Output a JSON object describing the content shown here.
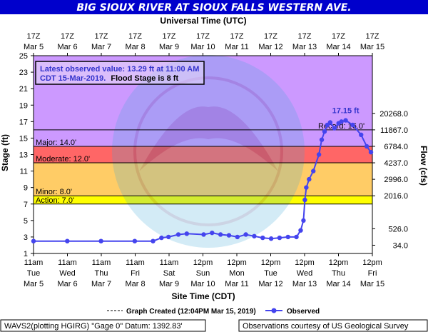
{
  "header": {
    "title": "BIG SIOUX RIVER AT SIOUX FALLS WESTERN AVE.",
    "title_color": "#0000cc"
  },
  "top_axis": {
    "title": "Universal Time (UTC)",
    "ticks": [
      {
        "hour": "17Z",
        "date": "Mar 5"
      },
      {
        "hour": "17Z",
        "date": "Mar 6"
      },
      {
        "hour": "17Z",
        "date": "Mar 7"
      },
      {
        "hour": "17Z",
        "date": "Mar 8"
      },
      {
        "hour": "17Z",
        "date": "Mar 9"
      },
      {
        "hour": "17Z",
        "date": "Mar 10"
      },
      {
        "hour": "17Z",
        "date": "Mar 11"
      },
      {
        "hour": "17Z",
        "date": "Mar 12"
      },
      {
        "hour": "17Z",
        "date": "Mar 13"
      },
      {
        "hour": "17Z",
        "date": "Mar 14"
      },
      {
        "hour": "17Z",
        "date": "Mar 15"
      }
    ]
  },
  "bottom_axis": {
    "title": "Site Time (CDT)",
    "ticks": [
      {
        "time": "11am",
        "day": "Tue",
        "date": "Mar 5"
      },
      {
        "time": "11am",
        "day": "Wed",
        "date": "Mar 6"
      },
      {
        "time": "11am",
        "day": "Thu",
        "date": "Mar 7"
      },
      {
        "time": "11am",
        "day": "Fri",
        "date": "Mar 8"
      },
      {
        "time": "11am",
        "day": "Sat",
        "date": "Mar 9"
      },
      {
        "time": "12pm",
        "day": "Sun",
        "date": "Mar 10"
      },
      {
        "time": "12pm",
        "day": "Mon",
        "date": "Mar 11"
      },
      {
        "time": "12pm",
        "day": "Tue",
        "date": "Mar 12"
      },
      {
        "time": "12pm",
        "day": "Wed",
        "date": "Mar 13"
      },
      {
        "time": "12pm",
        "day": "Thu",
        "date": "Mar 14"
      },
      {
        "time": "12pm",
        "day": "Fri",
        "date": "Mar 15"
      }
    ]
  },
  "left_axis": {
    "title": "Stage (ft)",
    "ticks": [
      "1",
      "3",
      "5",
      "7",
      "9",
      "11",
      "13",
      "15",
      "17",
      "19",
      "21",
      "23",
      "25"
    ]
  },
  "right_axis": {
    "title": "Flow (cfs)",
    "ticks": [
      {
        "stage": 2,
        "label": "34.0"
      },
      {
        "stage": 4,
        "label": "526.0"
      },
      {
        "stage": 8,
        "label": "2016.0"
      },
      {
        "stage": 10,
        "label": "2996.0"
      },
      {
        "stage": 12,
        "label": "4237.0"
      },
      {
        "stage": 14,
        "label": "6784.0"
      },
      {
        "stage": 16,
        "label": "11867.0"
      },
      {
        "stage": 18,
        "label": "20268.0"
      }
    ]
  },
  "info_box": {
    "line1": "Latest observed value: 13.29 ft at 11:00 AM",
    "line2_blue": "CDT 15-Mar-2019.",
    "line2_black": "Flood Stage is 8 ft"
  },
  "peak_label": "17.15 ft",
  "footer": {
    "left": "WAVS2(plotting HGIRG) \"Gage 0\" Datum: 1392.83'",
    "right": "Observations courtesy of US Geological Survey"
  },
  "chart_data": {
    "type": "line",
    "title": "BIG SIOUX RIVER AT SIOUX FALLS WESTERN AVE.",
    "xlabel": "Site Time (CDT)",
    "ylabel": "Stage (ft)",
    "y2label": "Flow (cfs)",
    "ylim": [
      1,
      25
    ],
    "xlim": [
      "2019-03-05 11:00 CDT",
      "2019-03-15 12:00 CDT"
    ],
    "grid": false,
    "legend": [
      {
        "name": "Graph Created (12:04PM Mar 15, 2019)",
        "style": "dashed-line",
        "color": "#000000"
      },
      {
        "name": "Observed",
        "style": "line-dot",
        "color": "#4444ee"
      }
    ],
    "categories": [
      {
        "name": "Record",
        "stage": 16.0,
        "label": "Record: 16.0'",
        "color": "#cc99ff"
      },
      {
        "name": "Major",
        "stage": 14.0,
        "label": "Major: 14.0'",
        "color": "#ff6666"
      },
      {
        "name": "Moderate",
        "stage": 12.0,
        "label": "Moderate: 12.0'",
        "color": "#ffcc66"
      },
      {
        "name": "Minor",
        "stage": 8.0,
        "label": "Minor: 8.0'",
        "color": "#ffff00"
      },
      {
        "name": "Action",
        "stage": 7.0,
        "label": "Action: 7.0'",
        "color": "#ffffff"
      }
    ],
    "band_colors": {
      "above_record": "#cc99ff",
      "major": "#ff6666",
      "moderate": "#ffcc66",
      "minor": "#ffff00",
      "normal": "#ffffff"
    },
    "series": [
      {
        "name": "Observed",
        "color": "#4444ee",
        "points": [
          {
            "date": "2019-03-05 11:00",
            "stage": 2.5
          },
          {
            "date": "2019-03-06 11:00",
            "stage": 2.5
          },
          {
            "date": "2019-03-07 11:00",
            "stage": 2.5
          },
          {
            "date": "2019-03-08 11:00",
            "stage": 2.5
          },
          {
            "date": "2019-03-09 00:00",
            "stage": 2.5
          },
          {
            "date": "2019-03-09 06:00",
            "stage": 2.9
          },
          {
            "date": "2019-03-09 11:00",
            "stage": 3.0
          },
          {
            "date": "2019-03-09 18:00",
            "stage": 3.3
          },
          {
            "date": "2019-03-10 00:00",
            "stage": 3.4
          },
          {
            "date": "2019-03-10 12:00",
            "stage": 3.3
          },
          {
            "date": "2019-03-10 18:00",
            "stage": 3.5
          },
          {
            "date": "2019-03-11 00:00",
            "stage": 3.3
          },
          {
            "date": "2019-03-11 06:00",
            "stage": 3.2
          },
          {
            "date": "2019-03-11 12:00",
            "stage": 3.0
          },
          {
            "date": "2019-03-11 18:00",
            "stage": 3.3
          },
          {
            "date": "2019-03-12 00:00",
            "stage": 3.1
          },
          {
            "date": "2019-03-12 06:00",
            "stage": 2.9
          },
          {
            "date": "2019-03-12 12:00",
            "stage": 2.8
          },
          {
            "date": "2019-03-12 18:00",
            "stage": 2.9
          },
          {
            "date": "2019-03-13 00:00",
            "stage": 3.0
          },
          {
            "date": "2019-03-13 06:00",
            "stage": 3.0
          },
          {
            "date": "2019-03-13 09:00",
            "stage": 3.8
          },
          {
            "date": "2019-03-13 11:00",
            "stage": 5.0
          },
          {
            "date": "2019-03-13 12:00",
            "stage": 7.5
          },
          {
            "date": "2019-03-13 13:00",
            "stage": 9.0
          },
          {
            "date": "2019-03-13 15:00",
            "stage": 10.0
          },
          {
            "date": "2019-03-13 18:00",
            "stage": 11.0
          },
          {
            "date": "2019-03-13 22:00",
            "stage": 13.0
          },
          {
            "date": "2019-03-14 00:00",
            "stage": 14.8
          },
          {
            "date": "2019-03-14 02:00",
            "stage": 15.8
          },
          {
            "date": "2019-03-14 04:00",
            "stage": 16.6
          },
          {
            "date": "2019-03-14 06:00",
            "stage": 16.9
          },
          {
            "date": "2019-03-14 09:00",
            "stage": 16.2
          },
          {
            "date": "2019-03-14 12:00",
            "stage": 16.8
          },
          {
            "date": "2019-03-14 14:00",
            "stage": 17.0
          },
          {
            "date": "2019-03-14 17:00",
            "stage": 17.15
          },
          {
            "date": "2019-03-14 22:00",
            "stage": 16.6
          },
          {
            "date": "2019-03-15 04:00",
            "stage": 15.4
          },
          {
            "date": "2019-03-15 08:00",
            "stage": 14.0
          },
          {
            "date": "2019-03-15 11:00",
            "stage": 13.29
          }
        ]
      }
    ]
  }
}
